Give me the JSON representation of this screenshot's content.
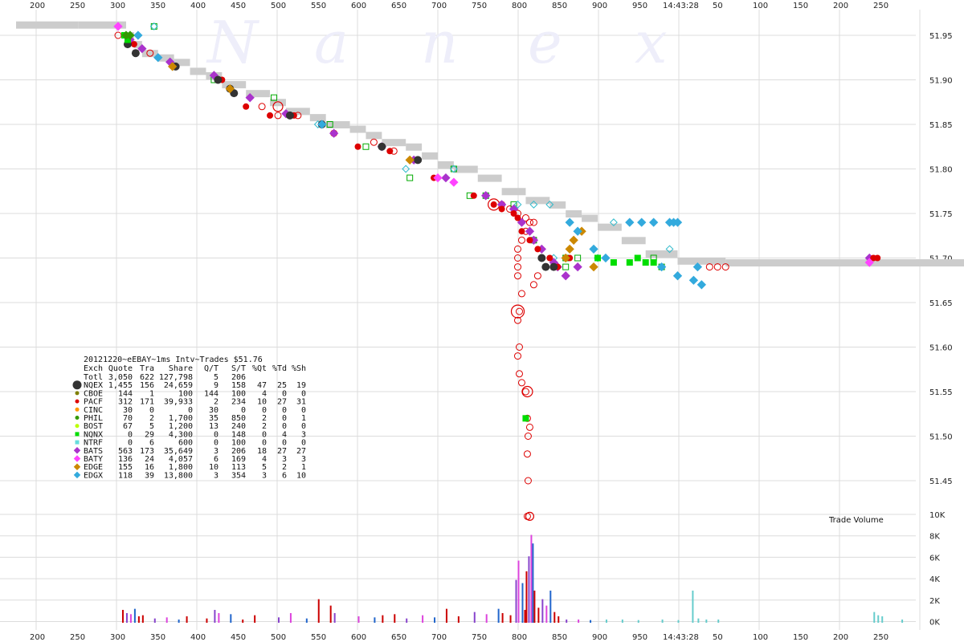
{
  "chart_data": {
    "type": "scatter",
    "title": "20121220~eEBAY~1ms Intv~Trades $51.76",
    "watermark": [
      "N",
      "a",
      "n",
      "e",
      "x"
    ],
    "x_ticks_top": [
      "200",
      "250",
      "300",
      "350",
      "400",
      "450",
      "500",
      "550",
      "600",
      "650",
      "700",
      "750",
      "800",
      "850",
      "900",
      "950",
      "14:43:28",
      "50",
      "100",
      "150",
      "200",
      "250"
    ],
    "x_ticks_bottom": [
      "200",
      "250",
      "300",
      "350",
      "400",
      "450",
      "500",
      "550",
      "600",
      "650",
      "700",
      "750",
      "800",
      "850",
      "900",
      "950",
      "14:43:28",
      "50",
      "100",
      "150",
      "200",
      "250"
    ],
    "y_ticks_price": [
      "51.95",
      "51.90",
      "51.85",
      "51.80",
      "51.75",
      "51.70",
      "51.65",
      "51.60",
      "51.55",
      "51.50",
      "51.45"
    ],
    "ylim_price": [
      51.41,
      51.96
    ],
    "y_ticks_volume": [
      "10K",
      "8K",
      "6K",
      "4K",
      "2K",
      "0K"
    ],
    "volume_label": "Trade Volume",
    "grid": true,
    "legend_position": "bottom-left",
    "colors": {
      "nbbo": "#cccccc",
      "nqex": "#333333",
      "cboe": "#7f7f00",
      "pacf": "#dd0000",
      "cinc": "#ff9900",
      "phil": "#339900",
      "bost": "#bbff00",
      "nqnx": "#00dd00",
      "ntrf": "#66dddd",
      "bats": "#aa33cc",
      "baty": "#ff44ff",
      "edge": "#cc8800",
      "edgx": "#33aadd"
    },
    "stats_table": {
      "headers": [
        "Exch",
        "Quote",
        "Tra",
        "Share",
        "Q/T",
        "S/T",
        "%Qt",
        "%Td",
        "%Sh"
      ],
      "rows": [
        [
          "Totl",
          "3,050",
          "622",
          "127,798",
          "5",
          "206",
          "",
          "",
          ""
        ],
        [
          "NQEX",
          "1,455",
          "156",
          "24,659",
          "9",
          "158",
          "47",
          "25",
          "19"
        ],
        [
          "CBOE",
          "144",
          "1",
          "100",
          "144",
          "100",
          "4",
          "0",
          "0"
        ],
        [
          "PACF",
          "312",
          "171",
          "39,933",
          "2",
          "234",
          "10",
          "27",
          "31"
        ],
        [
          "CINC",
          "30",
          "0",
          "0",
          "30",
          "0",
          "0",
          "0",
          "0"
        ],
        [
          "PHIL",
          "70",
          "2",
          "1,700",
          "35",
          "850",
          "2",
          "0",
          "1"
        ],
        [
          "BOST",
          "67",
          "5",
          "1,200",
          "13",
          "240",
          "2",
          "0",
          "0"
        ],
        [
          "NQNX",
          "0",
          "29",
          "4,300",
          "0",
          "148",
          "0",
          "4",
          "3"
        ],
        [
          "NTRF",
          "0",
          "6",
          "600",
          "0",
          "100",
          "0",
          "0",
          "0"
        ],
        [
          "BATS",
          "563",
          "173",
          "35,649",
          "3",
          "206",
          "18",
          "27",
          "27"
        ],
        [
          "BATY",
          "136",
          "24",
          "4,057",
          "6",
          "169",
          "4",
          "3",
          "3"
        ],
        [
          "EDGE",
          "155",
          "16",
          "1,800",
          "10",
          "113",
          "5",
          "2",
          "1"
        ],
        [
          "EDGX",
          "118",
          "39",
          "13,800",
          "3",
          "354",
          "3",
          "6",
          "10"
        ]
      ]
    },
    "nbbo_path": [
      [
        -200,
        51.962
      ],
      [
        -150,
        51.962
      ],
      [
        -50,
        51.962
      ],
      [
        0,
        51.962
      ],
      [
        10,
        51.95
      ],
      [
        20,
        51.94
      ],
      [
        30,
        51.93
      ],
      [
        50,
        51.925
      ],
      [
        70,
        51.92
      ],
      [
        90,
        51.91
      ],
      [
        110,
        51.905
      ],
      [
        130,
        51.895
      ],
      [
        160,
        51.885
      ],
      [
        190,
        51.875
      ],
      [
        210,
        51.865
      ],
      [
        240,
        51.858
      ],
      [
        260,
        51.85
      ],
      [
        290,
        51.845
      ],
      [
        310,
        51.838
      ],
      [
        330,
        51.83
      ],
      [
        360,
        51.825
      ],
      [
        380,
        51.815
      ],
      [
        400,
        51.805
      ],
      [
        420,
        51.8
      ],
      [
        450,
        51.79
      ],
      [
        480,
        51.775
      ],
      [
        510,
        51.765
      ],
      [
        540,
        51.76
      ],
      [
        560,
        51.75
      ],
      [
        580,
        51.745
      ],
      [
        600,
        51.735
      ],
      [
        630,
        51.72
      ],
      [
        660,
        51.705
      ],
      [
        700,
        51.697
      ],
      [
        760,
        51.695
      ],
      [
        900,
        51.695
      ],
      [
        1000,
        51.695
      ],
      [
        1080,
        51.695
      ],
      [
        1150,
        51.695
      ],
      [
        1180,
        51.695
      ],
      [
        1200,
        51.7
      ]
    ],
    "trades": [
      {
        "ex": "bats",
        "pts": [
          [
            15,
            51.945
          ],
          [
            30,
            51.935
          ],
          [
            65,
            51.92
          ],
          [
            120,
            51.905
          ],
          [
            165,
            51.88
          ],
          [
            210,
            51.862
          ],
          [
            270,
            51.84
          ],
          [
            330,
            51.825
          ],
          [
            370,
            51.81
          ],
          [
            410,
            51.79
          ],
          [
            460,
            51.77
          ],
          [
            480,
            51.76
          ],
          [
            495,
            51.755
          ],
          [
            505,
            51.74
          ],
          [
            515,
            51.73
          ],
          [
            520,
            51.72
          ],
          [
            530,
            51.71
          ],
          [
            545,
            51.695
          ],
          [
            550,
            51.69
          ],
          [
            560,
            51.68
          ],
          [
            575,
            51.69
          ],
          [
            940,
            51.7
          ]
        ]
      },
      {
        "ex": "pacf",
        "pts": [
          [
            20,
            51.94
          ],
          [
            130,
            51.9
          ],
          [
            160,
            51.87
          ],
          [
            190,
            51.86
          ],
          [
            220,
            51.86
          ],
          [
            300,
            51.825
          ],
          [
            340,
            51.82
          ],
          [
            395,
            51.79
          ],
          [
            445,
            51.77
          ],
          [
            470,
            51.76
          ],
          [
            480,
            51.755
          ],
          [
            495,
            51.75
          ],
          [
            500,
            51.745
          ],
          [
            505,
            51.73
          ],
          [
            515,
            51.72
          ],
          [
            525,
            51.71
          ],
          [
            530,
            51.7
          ],
          [
            540,
            51.7
          ],
          [
            550,
            51.69
          ],
          [
            560,
            51.7
          ],
          [
            565,
            51.7
          ],
          [
            945,
            51.7
          ],
          [
            950,
            51.7
          ]
        ]
      },
      {
        "ex": "nqex",
        "pts": [
          [
            12,
            51.94
          ],
          [
            22,
            51.93
          ],
          [
            72,
            51.915
          ],
          [
            125,
            51.9
          ],
          [
            140,
            51.89
          ],
          [
            145,
            51.885
          ],
          [
            215,
            51.86
          ],
          [
            255,
            51.85
          ],
          [
            330,
            51.825
          ],
          [
            375,
            51.81
          ],
          [
            530,
            51.7
          ],
          [
            535,
            51.69
          ],
          [
            545,
            51.69
          ]
        ]
      },
      {
        "ex": "edge",
        "pts": [
          [
            68,
            51.915
          ],
          [
            140,
            51.89
          ],
          [
            365,
            51.81
          ],
          [
            560,
            51.7
          ],
          [
            565,
            51.71
          ],
          [
            570,
            51.72
          ],
          [
            580,
            51.73
          ],
          [
            595,
            51.69
          ]
        ]
      },
      {
        "ex": "edgx",
        "pts": [
          [
            25,
            51.95
          ],
          [
            50,
            51.925
          ],
          [
            255,
            51.85
          ],
          [
            565,
            51.74
          ],
          [
            575,
            51.73
          ],
          [
            595,
            51.71
          ],
          [
            610,
            51.7
          ],
          [
            640,
            51.74
          ],
          [
            655,
            51.74
          ],
          [
            670,
            51.74
          ],
          [
            690,
            51.74
          ],
          [
            695,
            51.74
          ],
          [
            700,
            51.74
          ],
          [
            680,
            51.69
          ],
          [
            700,
            51.68
          ],
          [
            720,
            51.675
          ],
          [
            725,
            51.69
          ],
          [
            730,
            51.67
          ]
        ]
      },
      {
        "ex": "nqnx",
        "pts": [
          [
            8,
            51.95
          ],
          [
            12,
            51.945
          ],
          [
            600,
            51.7
          ],
          [
            620,
            51.695
          ],
          [
            640,
            51.695
          ],
          [
            650,
            51.7
          ],
          [
            660,
            51.695
          ],
          [
            670,
            51.695
          ],
          [
            510,
            51.52
          ]
        ]
      },
      {
        "ex": "phil",
        "pts": [
          [
            10,
            51.95
          ],
          [
            15,
            51.95
          ]
        ]
      },
      {
        "ex": "baty",
        "pts": [
          [
            0,
            51.96
          ],
          [
            400,
            51.79
          ],
          [
            420,
            51.785
          ],
          [
            940,
            51.695
          ]
        ]
      }
    ],
    "open_red": [
      [
        0,
        51.95
      ],
      [
        40,
        51.93
      ],
      [
        180,
        51.87
      ],
      [
        200,
        51.86
      ],
      [
        225,
        51.86
      ],
      [
        270,
        51.84
      ],
      [
        320,
        51.83
      ],
      [
        345,
        51.82
      ],
      [
        480,
        51.76
      ],
      [
        490,
        51.755
      ],
      [
        500,
        51.75
      ],
      [
        510,
        51.745
      ],
      [
        515,
        51.74
      ],
      [
        520,
        51.74
      ],
      [
        510,
        51.73
      ],
      [
        505,
        51.72
      ],
      [
        500,
        51.71
      ],
      [
        500,
        51.7
      ],
      [
        500,
        51.69
      ],
      [
        500,
        51.68
      ],
      [
        505,
        51.66
      ],
      [
        502,
        51.64
      ],
      [
        500,
        51.63
      ],
      [
        502,
        51.6
      ],
      [
        500,
        51.59
      ],
      [
        502,
        51.57
      ],
      [
        505,
        51.56
      ],
      [
        510,
        51.55
      ],
      [
        512,
        51.52
      ],
      [
        515,
        51.51
      ],
      [
        513,
        51.5
      ],
      [
        512,
        51.48
      ],
      [
        513,
        51.45
      ],
      [
        512,
        51.41
      ],
      [
        520,
        51.72
      ],
      [
        525,
        51.68
      ],
      [
        520,
        51.67
      ],
      [
        740,
        51.69
      ],
      [
        750,
        51.69
      ],
      [
        760,
        51.69
      ]
    ],
    "open_green": [
      [
        45,
        51.96
      ],
      [
        120,
        51.9
      ],
      [
        195,
        51.88
      ],
      [
        265,
        51.85
      ],
      [
        310,
        51.825
      ],
      [
        365,
        51.79
      ],
      [
        420,
        51.8
      ],
      [
        440,
        51.77
      ],
      [
        460,
        51.77
      ],
      [
        495,
        51.76
      ],
      [
        520,
        51.72
      ],
      [
        560,
        51.7
      ],
      [
        560,
        51.69
      ],
      [
        575,
        51.7
      ],
      [
        600,
        51.7
      ],
      [
        670,
        51.7
      ],
      [
        680,
        51.69
      ]
    ],
    "open_cyan": [
      [
        45,
        51.96
      ],
      [
        250,
        51.85
      ],
      [
        360,
        51.8
      ],
      [
        420,
        51.8
      ],
      [
        500,
        51.76
      ],
      [
        520,
        51.76
      ],
      [
        540,
        51.76
      ],
      [
        545,
        51.7
      ],
      [
        600,
        51.7
      ],
      [
        620,
        51.74
      ],
      [
        640,
        51.74
      ],
      [
        690,
        51.71
      ]
    ],
    "volume_bars": [
      [
        5,
        1200
      ],
      [
        10,
        900
      ],
      [
        15,
        800
      ],
      [
        20,
        1300
      ],
      [
        25,
        600
      ],
      [
        30,
        700
      ],
      [
        45,
        400
      ],
      [
        60,
        500
      ],
      [
        75,
        300
      ],
      [
        85,
        600
      ],
      [
        110,
        400
      ],
      [
        120,
        1200
      ],
      [
        125,
        900
      ],
      [
        140,
        800
      ],
      [
        155,
        300
      ],
      [
        170,
        700
      ],
      [
        200,
        500
      ],
      [
        215,
        900
      ],
      [
        235,
        400
      ],
      [
        250,
        2200
      ],
      [
        265,
        1600
      ],
      [
        270,
        900
      ],
      [
        300,
        600
      ],
      [
        320,
        500
      ],
      [
        330,
        700
      ],
      [
        345,
        800
      ],
      [
        360,
        400
      ],
      [
        380,
        700
      ],
      [
        395,
        500
      ],
      [
        410,
        1300
      ],
      [
        425,
        600
      ],
      [
        445,
        1000
      ],
      [
        460,
        800
      ],
      [
        475,
        1300
      ],
      [
        480,
        900
      ],
      [
        490,
        700
      ],
      [
        497,
        4000
      ],
      [
        500,
        5800
      ],
      [
        505,
        3700
      ],
      [
        508,
        1200
      ],
      [
        510,
        4800
      ],
      [
        513,
        6200
      ],
      [
        516,
        8200
      ],
      [
        518,
        7400
      ],
      [
        520,
        3000
      ],
      [
        525,
        1400
      ],
      [
        530,
        2200
      ],
      [
        535,
        1600
      ],
      [
        540,
        3000
      ],
      [
        545,
        1000
      ],
      [
        550,
        600
      ],
      [
        560,
        300
      ],
      [
        575,
        300
      ],
      [
        590,
        250
      ],
      [
        610,
        300
      ],
      [
        630,
        300
      ],
      [
        650,
        250
      ],
      [
        680,
        300
      ],
      [
        700,
        250
      ],
      [
        718,
        3000
      ],
      [
        725,
        400
      ],
      [
        735,
        300
      ],
      [
        750,
        300
      ],
      [
        945,
        1000
      ],
      [
        950,
        700
      ],
      [
        955,
        600
      ],
      [
        980,
        300
      ]
    ]
  }
}
